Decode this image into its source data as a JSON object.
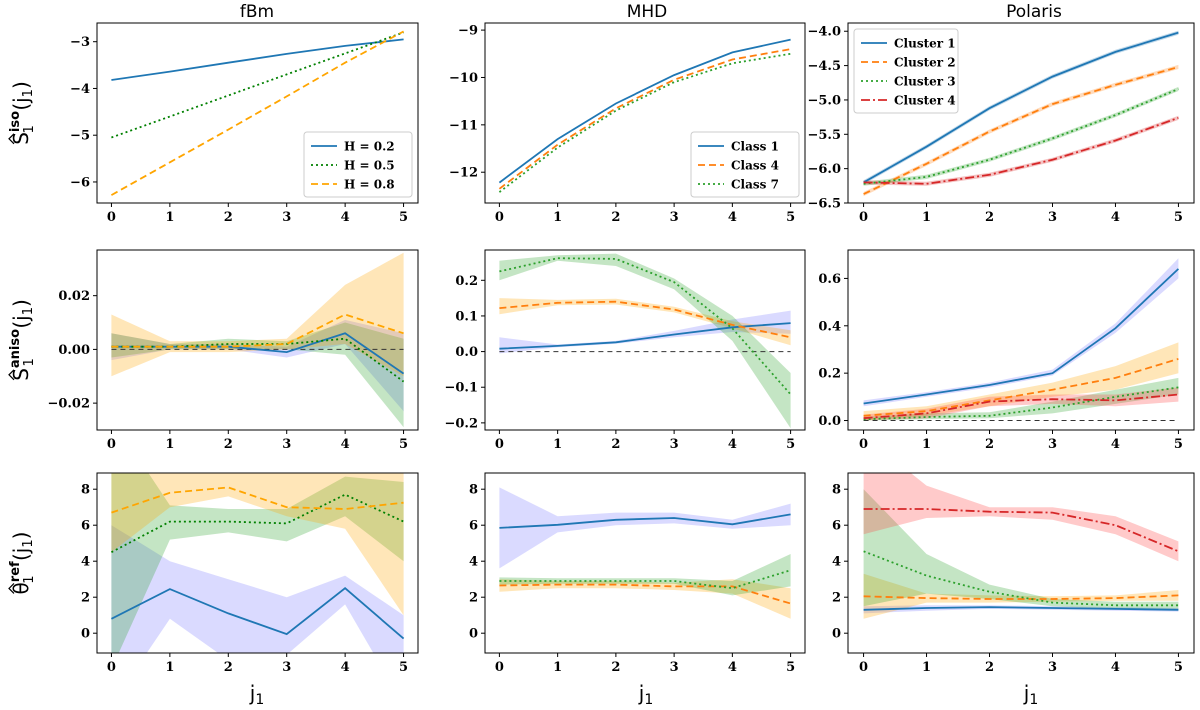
{
  "figure": {
    "col_titles": [
      "fBm",
      "MHD",
      "Polaris"
    ],
    "xlabel_main": "j",
    "xlabel_sub": "1",
    "row_ylabels": [
      {
        "main": "S",
        "sub": "1",
        "sup": "iso",
        "arg": "(j",
        "argsub": "1",
        "close": ")"
      },
      {
        "main": "S",
        "sub": "1",
        "sup": "aniso",
        "arg": "(j",
        "argsub": "1",
        "close": ")"
      },
      {
        "main": "θ",
        "sub": "1",
        "sup": "ref",
        "arg": "(j",
        "argsub": "1",
        "close": ")"
      }
    ]
  },
  "colors": {
    "blue": "#1f77b4",
    "orange": "#ff7f0e",
    "green": "#2ca02c",
    "red": "#d62728",
    "fbm_orange": "#ffa500",
    "fbm_green": "#008000"
  },
  "chart_data": [
    {
      "id": "fbm-iso",
      "type": "line",
      "title": "fBm",
      "x": [
        0,
        1,
        2,
        3,
        4,
        5
      ],
      "ylim": [
        -6.45,
        -2.6
      ],
      "yticks": [
        -6,
        -5,
        -4,
        -3
      ],
      "yticklabels": [
        "−6",
        "−5",
        "−4",
        "−3"
      ],
      "legend": "lower-right",
      "zero_line": false,
      "series": [
        {
          "name": "H = 0.2",
          "color": "#1f77b4",
          "dash": "",
          "values": [
            -3.82,
            -3.64,
            -3.45,
            -3.26,
            -3.09,
            -2.95
          ]
        },
        {
          "name": "H = 0.5",
          "color": "#008000",
          "dash": "2,3",
          "values": [
            -5.05,
            -4.6,
            -4.15,
            -3.7,
            -3.25,
            -2.8
          ]
        },
        {
          "name": "H = 0.8",
          "color": "#ffa500",
          "dash": "7,4",
          "values": [
            -6.28,
            -5.58,
            -4.88,
            -4.17,
            -3.45,
            -2.78
          ]
        }
      ]
    },
    {
      "id": "mhd-iso",
      "type": "line",
      "title": "MHD",
      "x": [
        0,
        1,
        2,
        3,
        4,
        5
      ],
      "ylim": [
        -12.65,
        -8.85
      ],
      "yticks": [
        -12,
        -11,
        -10,
        -9
      ],
      "yticklabels": [
        "−12",
        "−11",
        "−10",
        "−9"
      ],
      "legend": "lower-right",
      "zero_line": false,
      "series": [
        {
          "name": "Class 1",
          "color": "#1f77b4",
          "dash": "",
          "values": [
            -12.22,
            -11.3,
            -10.55,
            -9.95,
            -9.47,
            -9.2
          ]
        },
        {
          "name": "Class 4",
          "color": "#ff7f0e",
          "dash": "7,4",
          "values": [
            -12.35,
            -11.42,
            -10.65,
            -10.05,
            -9.62,
            -9.4
          ]
        },
        {
          "name": "Class 7",
          "color": "#2ca02c",
          "dash": "2,3",
          "values": [
            -12.42,
            -11.48,
            -10.7,
            -10.1,
            -9.7,
            -9.5
          ]
        }
      ]
    },
    {
      "id": "polaris-iso",
      "type": "line",
      "title": "Polaris",
      "x": [
        0,
        1,
        2,
        3,
        4,
        5
      ],
      "ylim": [
        -6.5,
        -3.88
      ],
      "yticks": [
        -6.5,
        -6,
        -5.5,
        -5,
        -4.5,
        -4
      ],
      "yticklabels": [
        "−6.5",
        "−6.0",
        "−5.5",
        "−5.0",
        "−4.5",
        "−4.0"
      ],
      "legend": "top-left",
      "zero_line": false,
      "series": [
        {
          "name": "Cluster 1",
          "color": "#1f77b4",
          "dash": "",
          "values": [
            -6.2,
            -5.68,
            -5.12,
            -4.66,
            -4.3,
            -4.02
          ],
          "band": 0.03
        },
        {
          "name": "Cluster 2",
          "color": "#ff7f0e",
          "dash": "7,4",
          "values": [
            -6.37,
            -5.93,
            -5.46,
            -5.06,
            -4.78,
            -4.52
          ],
          "band": 0.03
        },
        {
          "name": "Cluster 3",
          "color": "#2ca02c",
          "dash": "2,3",
          "values": [
            -6.22,
            -6.12,
            -5.87,
            -5.56,
            -5.22,
            -4.84
          ],
          "band": 0.03
        },
        {
          "name": "Cluster 4",
          "color": "#d62728",
          "dash": "9,3,2,3",
          "values": [
            -6.2,
            -6.22,
            -6.09,
            -5.87,
            -5.59,
            -5.26
          ],
          "band": 0.03
        }
      ]
    },
    {
      "id": "fbm-aniso",
      "type": "line",
      "x": [
        0,
        1,
        2,
        3,
        4,
        5
      ],
      "ylim": [
        -0.03,
        0.037
      ],
      "yticks": [
        -0.02,
        0,
        0.02
      ],
      "yticklabels": [
        "−0.02",
        "0.00",
        "0.02"
      ],
      "zero_line": true,
      "series": [
        {
          "name": "H = 0.2",
          "color": "#1f77b4",
          "dash": "",
          "values": [
            0.001,
            0.001,
            0.001,
            -0.001,
            0.006,
            -0.009
          ],
          "lower": [
            -0.004,
            0,
            0,
            -0.003,
            0.002,
            -0.023
          ],
          "upper": [
            0.006,
            0.002,
            0.002,
            0.001,
            0.011,
            0.006
          ],
          "band_color": "#7b7bff"
        },
        {
          "name": "H = 0.5",
          "color": "#008000",
          "dash": "2,3",
          "values": [
            0.001,
            0.001,
            0.002,
            0.002,
            0.004,
            -0.012
          ],
          "lower": [
            -0.003,
            0,
            0,
            0,
            -0.002,
            -0.029
          ],
          "upper": [
            0.006,
            0.002,
            0.004,
            0.003,
            0.01,
            0.004
          ],
          "band_color": "#2ca02c"
        },
        {
          "name": "H = 0.8",
          "color": "#ffa500",
          "dash": "7,4",
          "values": [
            0.001,
            0.001,
            0.001,
            0.002,
            0.013,
            0.006
          ],
          "lower": [
            -0.01,
            -0.001,
            -0.001,
            0,
            0.002,
            -0.01
          ],
          "upper": [
            0.013,
            0.003,
            0.003,
            0.004,
            0.024,
            0.036
          ],
          "band_color": "#ffa500"
        }
      ]
    },
    {
      "id": "mhd-aniso",
      "type": "line",
      "x": [
        0,
        1,
        2,
        3,
        4,
        5
      ],
      "ylim": [
        -0.22,
        0.285
      ],
      "yticks": [
        -0.2,
        -0.1,
        0,
        0.1,
        0.2
      ],
      "yticklabels": [
        "−0.2",
        "−0.1",
        "0.0",
        "0.1",
        "0.2"
      ],
      "zero_line": true,
      "series": [
        {
          "name": "Class 1",
          "color": "#1f77b4",
          "dash": "",
          "values": [
            0.008,
            0.016,
            0.026,
            0.048,
            0.068,
            0.08
          ],
          "lower": [
            -0.005,
            0.012,
            0.022,
            0.04,
            0.055,
            0.05
          ],
          "upper": [
            0.04,
            0.02,
            0.03,
            0.058,
            0.09,
            0.115
          ],
          "band_color": "#7b7bff"
        },
        {
          "name": "Class 4",
          "color": "#ff7f0e",
          "dash": "7,4",
          "values": [
            0.122,
            0.137,
            0.14,
            0.118,
            0.075,
            0.04
          ],
          "lower": [
            0.105,
            0.13,
            0.132,
            0.11,
            0.065,
            0.018
          ],
          "upper": [
            0.15,
            0.145,
            0.148,
            0.126,
            0.085,
            0.06
          ],
          "band_color": "#ffa500"
        },
        {
          "name": "Class 7",
          "color": "#2ca02c",
          "dash": "2,3",
          "values": [
            0.225,
            0.262,
            0.26,
            0.195,
            0.065,
            -0.12
          ],
          "lower": [
            0.2,
            0.255,
            0.24,
            0.175,
            0.03,
            -0.215
          ],
          "upper": [
            0.255,
            0.27,
            0.275,
            0.205,
            0.1,
            -0.06
          ],
          "band_color": "#2ca02c"
        }
      ]
    },
    {
      "id": "polaris-aniso",
      "type": "line",
      "x": [
        0,
        1,
        2,
        3,
        4,
        5
      ],
      "ylim": [
        -0.04,
        0.72
      ],
      "yticks": [
        0,
        0.2,
        0.4,
        0.6
      ],
      "yticklabels": [
        "0.0",
        "0.2",
        "0.4",
        "0.6"
      ],
      "zero_line": true,
      "series": [
        {
          "name": "Cluster 1",
          "color": "#1f77b4",
          "dash": "",
          "values": [
            0.072,
            0.11,
            0.15,
            0.2,
            0.39,
            0.64
          ],
          "lower": [
            0.06,
            0.1,
            0.14,
            0.19,
            0.37,
            0.6
          ],
          "upper": [
            0.085,
            0.12,
            0.16,
            0.215,
            0.41,
            0.685
          ],
          "band_color": "#7b7bff"
        },
        {
          "name": "Cluster 2",
          "color": "#ff7f0e",
          "dash": "7,4",
          "values": [
            0.02,
            0.04,
            0.085,
            0.13,
            0.18,
            0.26
          ],
          "lower": [
            0,
            0.02,
            0.06,
            0.1,
            0.13,
            0.2
          ],
          "upper": [
            0.04,
            0.06,
            0.11,
            0.16,
            0.23,
            0.33
          ],
          "band_color": "#ffa500"
        },
        {
          "name": "Cluster 3",
          "color": "#2ca02c",
          "dash": "2,3",
          "values": [
            0.005,
            0.015,
            0.02,
            0.055,
            0.1,
            0.14
          ],
          "lower": [
            0,
            0.005,
            0.01,
            0.03,
            0.07,
            0.11
          ],
          "upper": [
            0.015,
            0.03,
            0.035,
            0.08,
            0.13,
            0.18
          ],
          "band_color": "#2ca02c"
        },
        {
          "name": "Cluster 4",
          "color": "#d62728",
          "dash": "9,3,2,3",
          "values": [
            0.01,
            0.03,
            0.08,
            0.09,
            0.085,
            0.11
          ],
          "lower": [
            0,
            0.01,
            0.06,
            0.07,
            0.06,
            0.08
          ],
          "upper": [
            0.025,
            0.05,
            0.1,
            0.11,
            0.11,
            0.14
          ],
          "band_color": "#ff4040"
        }
      ]
    },
    {
      "id": "fbm-ref",
      "type": "line",
      "x": [
        0,
        1,
        2,
        3,
        4,
        5
      ],
      "ylim": [
        -1.1,
        8.9
      ],
      "yticks": [
        0,
        2,
        4,
        6,
        8
      ],
      "yticklabels": [
        "0",
        "2",
        "4",
        "6",
        "8"
      ],
      "zero_line": false,
      "series": [
        {
          "name": "H = 0.2",
          "color": "#1f77b4",
          "dash": "",
          "values": [
            0.8,
            2.45,
            1.1,
            -0.05,
            2.5,
            -0.3
          ],
          "lower": [
            -4,
            0.8,
            -1.5,
            -1.2,
            1.6,
            -4
          ],
          "upper": [
            6,
            4,
            3,
            2,
            3.2,
            1
          ],
          "band_color": "#7b7bff"
        },
        {
          "name": "H = 0.5",
          "color": "#008000",
          "dash": "2,3",
          "values": [
            4.5,
            6.2,
            6.2,
            6.1,
            7.7,
            6.2
          ],
          "lower": [
            -2,
            5.2,
            5.6,
            5.1,
            6.5,
            4
          ],
          "upper": [
            12,
            7.1,
            6.9,
            6.9,
            8.7,
            8.4
          ],
          "band_color": "#2ca02c"
        },
        {
          "name": "H = 0.8",
          "color": "#ffa500",
          "dash": "7,4",
          "values": [
            6.7,
            7.8,
            8.1,
            7,
            6.9,
            7.25
          ],
          "lower": [
            4.5,
            7,
            7.6,
            6.5,
            5.8,
            1
          ],
          "upper": [
            11,
            10,
            10,
            10,
            10,
            10
          ],
          "band_color": "#ffa500"
        }
      ]
    },
    {
      "id": "mhd-ref",
      "type": "line",
      "x": [
        0,
        1,
        2,
        3,
        4,
        5
      ],
      "ylim": [
        -1.1,
        8.9
      ],
      "yticks": [
        0,
        2,
        4,
        6,
        8
      ],
      "yticklabels": [
        "0",
        "2",
        "4",
        "6",
        "8"
      ],
      "zero_line": false,
      "series": [
        {
          "name": "Class 1",
          "color": "#1f77b4",
          "dash": "",
          "values": [
            5.85,
            6.02,
            6.3,
            6.4,
            6.05,
            6.6
          ],
          "lower": [
            3.6,
            5.6,
            6,
            6.1,
            5.8,
            6
          ],
          "upper": [
            8.1,
            6.5,
            6.7,
            6.7,
            6.3,
            7.2
          ],
          "band_color": "#7b7bff"
        },
        {
          "name": "Class 4",
          "color": "#ff7f0e",
          "dash": "7,4",
          "values": [
            2.65,
            2.7,
            2.7,
            2.6,
            2.6,
            1.65
          ],
          "lower": [
            2.3,
            2.5,
            2.5,
            2.4,
            2.2,
            0.8
          ],
          "upper": [
            3,
            2.9,
            2.9,
            2.8,
            3,
            2.5
          ],
          "band_color": "#ffa500"
        },
        {
          "name": "Class 7",
          "color": "#2ca02c",
          "dash": "2,3",
          "values": [
            2.9,
            2.9,
            2.9,
            2.9,
            2.5,
            3.5
          ],
          "lower": [
            2.7,
            2.75,
            2.75,
            2.75,
            2.1,
            2.6
          ],
          "upper": [
            3.1,
            3.05,
            3.05,
            3.05,
            2.9,
            4.4
          ],
          "band_color": "#2ca02c"
        }
      ]
    },
    {
      "id": "polaris-ref",
      "type": "line",
      "x": [
        0,
        1,
        2,
        3,
        4,
        5
      ],
      "ylim": [
        -1.1,
        8.9
      ],
      "yticks": [
        0,
        2,
        4,
        6,
        8
      ],
      "yticklabels": [
        "0",
        "2",
        "4",
        "6",
        "8"
      ],
      "zero_line": false,
      "series": [
        {
          "name": "Cluster 1",
          "color": "#1f77b4",
          "dash": "",
          "values": [
            1.3,
            1.4,
            1.45,
            1.4,
            1.35,
            1.3
          ],
          "lower": [
            1.1,
            1.25,
            1.35,
            1.3,
            1.25,
            1.2
          ],
          "upper": [
            1.5,
            1.55,
            1.55,
            1.5,
            1.45,
            1.4
          ],
          "band_color": "#7b7bff"
        },
        {
          "name": "Cluster 2",
          "color": "#ff7f0e",
          "dash": "7,4",
          "values": [
            2.05,
            1.95,
            1.9,
            1.9,
            1.95,
            2.1
          ],
          "lower": [
            0.8,
            1.7,
            1.7,
            1.75,
            1.8,
            1.8
          ],
          "upper": [
            3.3,
            2.2,
            2.1,
            2.05,
            2.1,
            2.4
          ],
          "band_color": "#ffa500"
        },
        {
          "name": "Cluster 3",
          "color": "#2ca02c",
          "dash": "2,3",
          "values": [
            4.55,
            3.2,
            2.3,
            1.7,
            1.55,
            1.55
          ],
          "lower": [
            1.5,
            2.2,
            1.9,
            1.5,
            1.35,
            1.35
          ],
          "upper": [
            8,
            4.4,
            2.7,
            1.9,
            1.75,
            1.75
          ],
          "band_color": "#2ca02c"
        },
        {
          "name": "Cluster 4",
          "color": "#d62728",
          "dash": "9,3,2,3",
          "values": [
            6.9,
            6.9,
            6.75,
            6.7,
            6,
            4.55
          ],
          "lower": [
            5.5,
            6.4,
            6.5,
            6.3,
            5.5,
            4
          ],
          "upper": [
            11,
            8.2,
            7,
            7,
            6.5,
            5.1
          ],
          "band_color": "#ff4040"
        }
      ]
    }
  ]
}
